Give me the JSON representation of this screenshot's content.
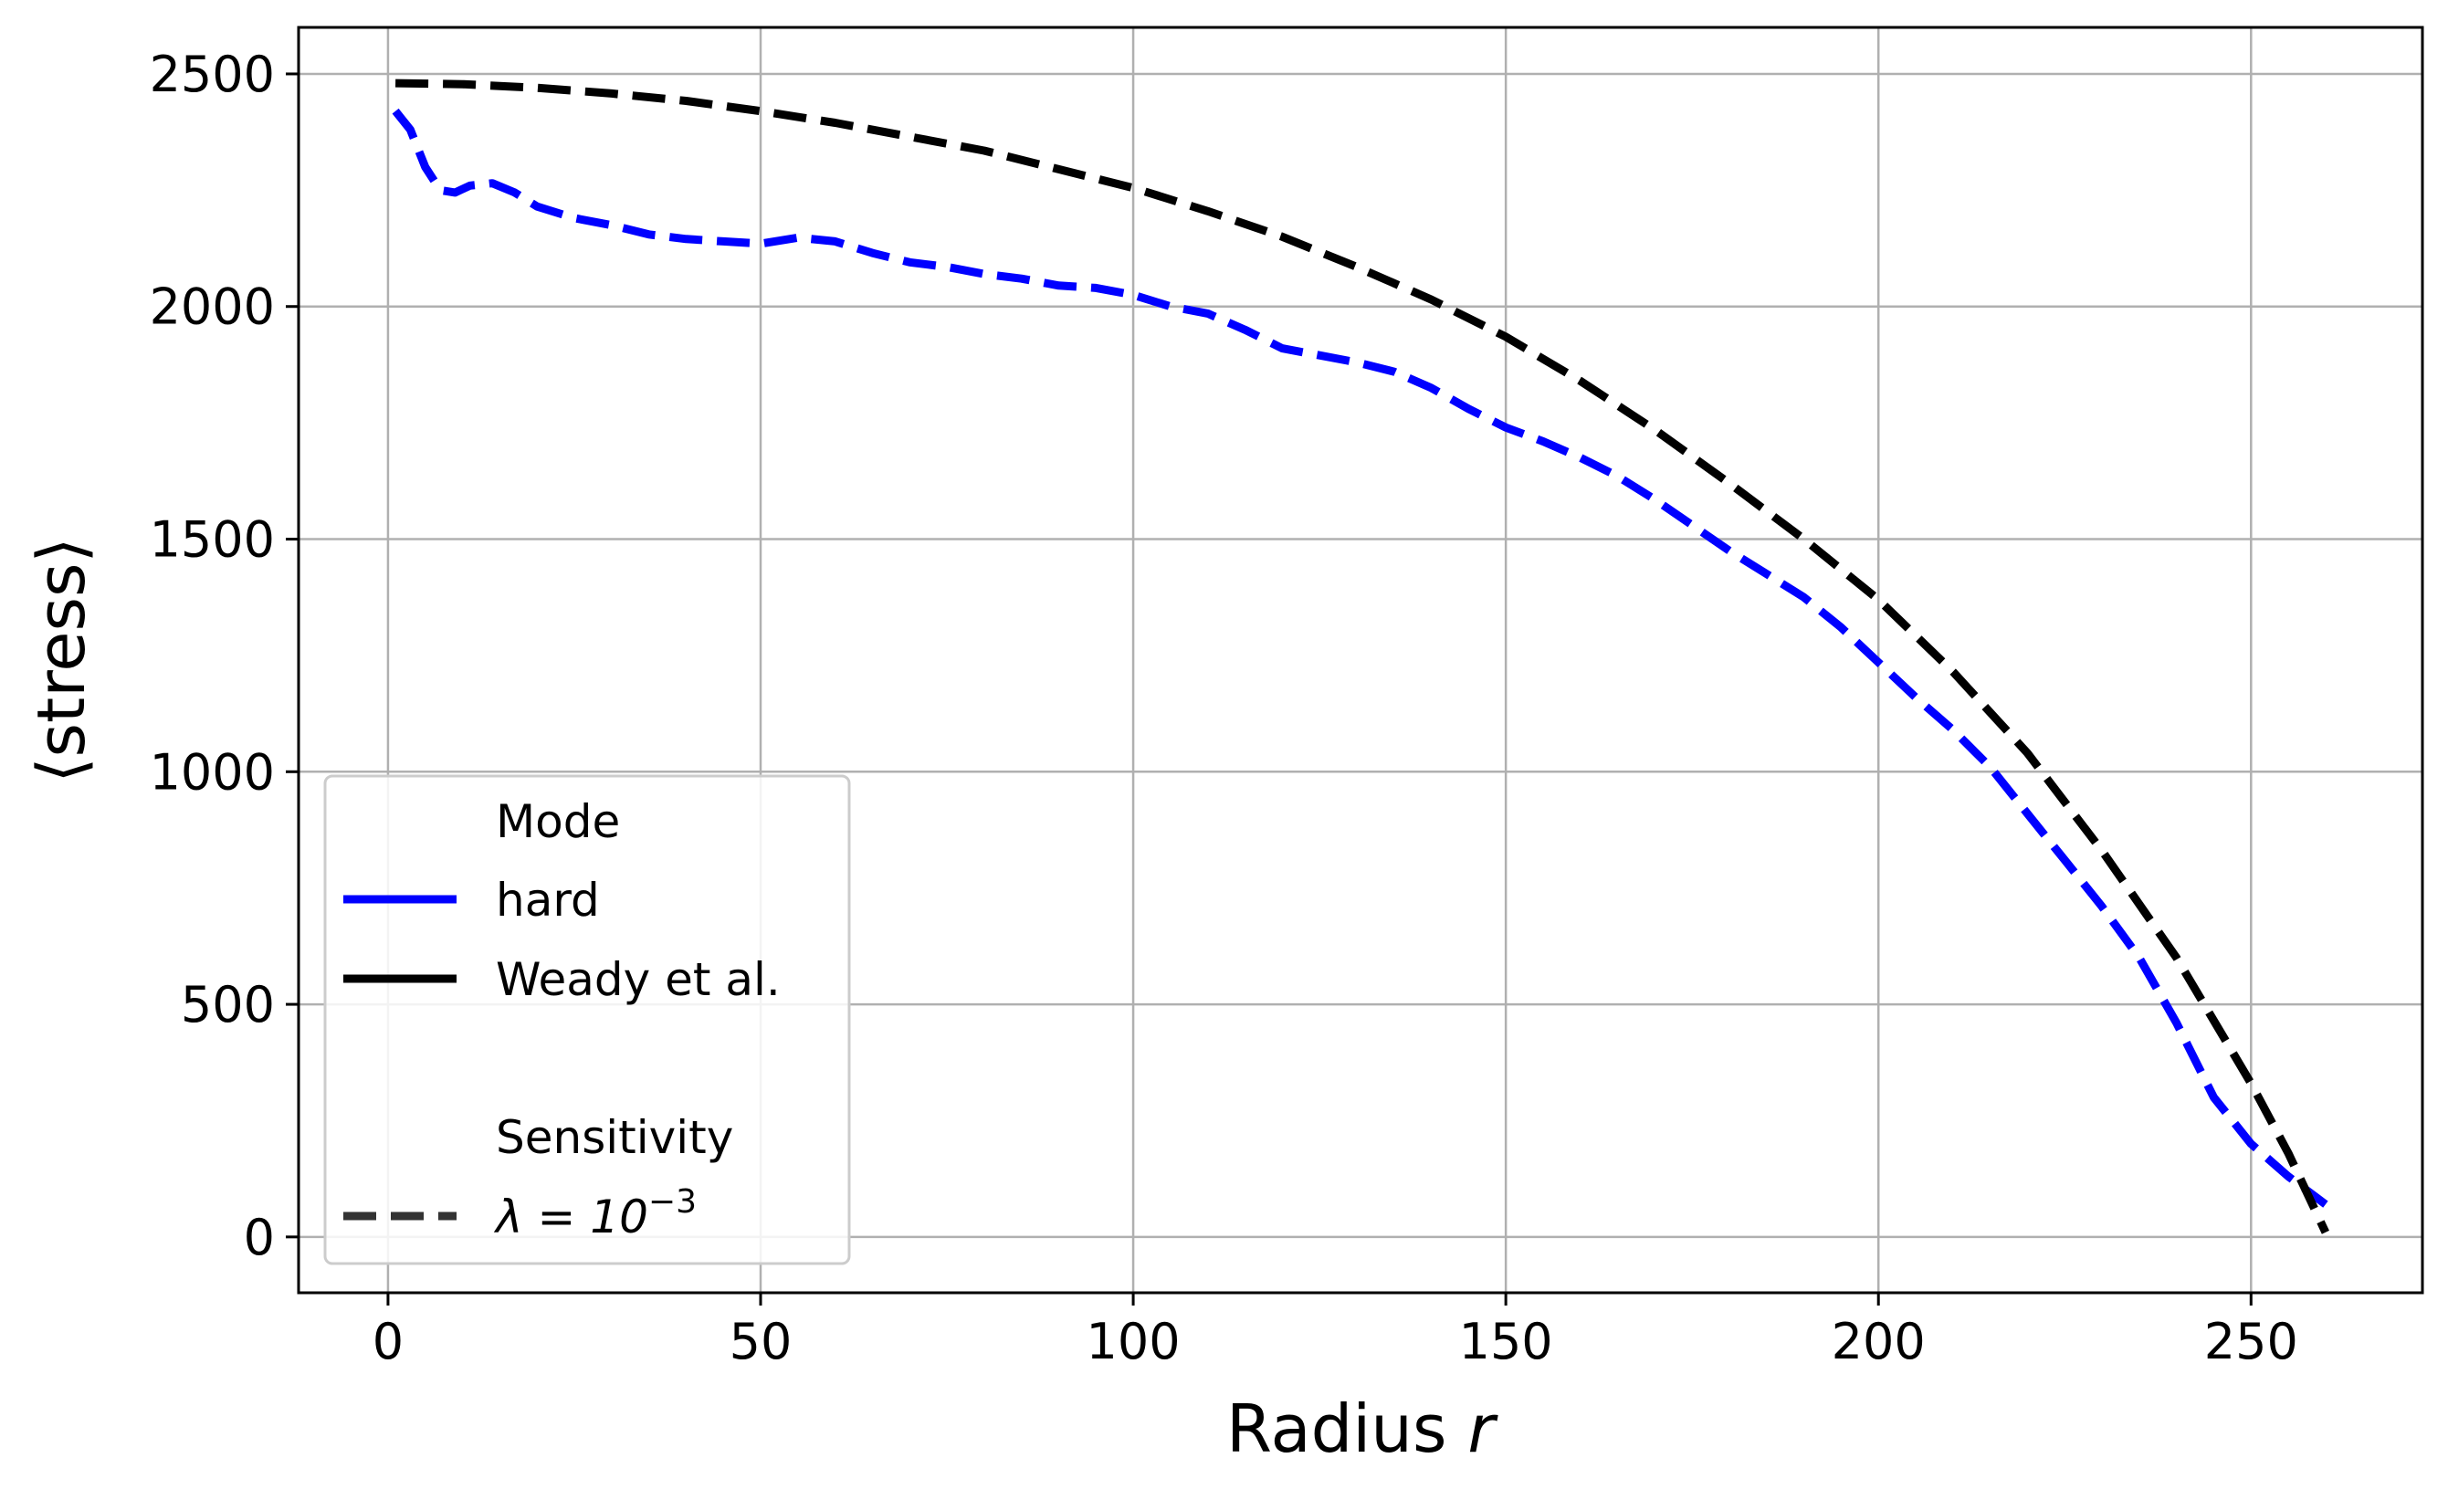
{
  "chart_data": {
    "type": "line",
    "xlabel": "Radius",
    "xlabel_var": "r",
    "ylabel": "⟨stress⟩",
    "xlim": [
      -12,
      273
    ],
    "ylim": [
      -120,
      2600
    ],
    "xticks": [
      0,
      50,
      100,
      150,
      200,
      250
    ],
    "yticks": [
      0,
      500,
      1000,
      1500,
      2000,
      2500
    ],
    "grid": true,
    "legend_placement": "lower-left",
    "legend": {
      "mode_title": "Mode",
      "mode_entries": [
        {
          "label": "hard",
          "color": "#0000ff",
          "style": "solid"
        },
        {
          "label": "Weady et al.",
          "color": "#000000",
          "style": "solid"
        }
      ],
      "sensitivity_title": "Sensitivity",
      "sensitivity_entries": [
        {
          "label_base": "λ = 10",
          "label_exp": "−3",
          "color": "#333333",
          "style": "dashed"
        }
      ]
    },
    "series": [
      {
        "name": "hard",
        "color": "#0000ff",
        "style": "dashed",
        "x": [
          1,
          3,
          5,
          7,
          9,
          11,
          14,
          17,
          20,
          25,
          30,
          35,
          40,
          45,
          50,
          55,
          60,
          65,
          70,
          75,
          80,
          85,
          90,
          95,
          100,
          105,
          110,
          115,
          120,
          125,
          130,
          135,
          140,
          145,
          150,
          155,
          160,
          165,
          170,
          175,
          180,
          185,
          190,
          195,
          200,
          205,
          210,
          215,
          220,
          225,
          230,
          235,
          240,
          245,
          250,
          255,
          260
        ],
        "y": [
          2420,
          2380,
          2300,
          2250,
          2245,
          2260,
          2265,
          2245,
          2215,
          2190,
          2175,
          2155,
          2145,
          2140,
          2135,
          2148,
          2140,
          2115,
          2095,
          2085,
          2070,
          2060,
          2045,
          2040,
          2025,
          2000,
          1985,
          1950,
          1910,
          1895,
          1880,
          1860,
          1825,
          1780,
          1740,
          1710,
          1675,
          1635,
          1585,
          1530,
          1475,
          1425,
          1375,
          1310,
          1235,
          1160,
          1090,
          1010,
          910,
          810,
          710,
          600,
          460,
          300,
          200,
          130,
          70
        ]
      },
      {
        "name": "Weady et al.",
        "color": "#000000",
        "style": "dashed",
        "x": [
          1,
          10,
          20,
          30,
          40,
          50,
          60,
          70,
          80,
          90,
          100,
          110,
          120,
          130,
          140,
          150,
          160,
          170,
          180,
          190,
          200,
          210,
          220,
          230,
          240,
          250,
          255,
          260
        ],
        "y": [
          2480,
          2478,
          2470,
          2458,
          2442,
          2420,
          2395,
          2365,
          2335,
          2295,
          2255,
          2205,
          2150,
          2085,
          2015,
          1935,
          1840,
          1735,
          1620,
          1500,
          1370,
          1215,
          1040,
          830,
          600,
          330,
          180,
          10
        ]
      }
    ]
  }
}
